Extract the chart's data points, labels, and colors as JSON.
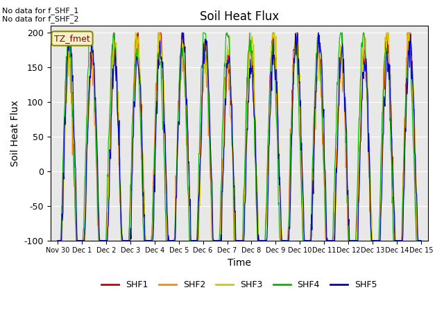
{
  "title": "Soil Heat Flux",
  "ylabel": "Soil Heat Flux",
  "xlabel": "Time",
  "annotation_text": "No data for f_SHF_1\nNo data for f_SHF_2",
  "legend_label": "TZ_fmet",
  "ylim": [
    -100,
    210
  ],
  "series_colors": {
    "SHF1": "#cc0000",
    "SHF2": "#ff8800",
    "SHF3": "#cccc00",
    "SHF4": "#00bb00",
    "SHF5": "#0000cc"
  },
  "x_tick_labels": [
    "Nov 30",
    "Dec 1",
    "Dec 2",
    "Dec 3",
    "Dec 4",
    "Dec 5",
    "Dec 6",
    "Dec 7",
    "Dec 8",
    "Dec 9",
    "Dec 10",
    "Dec 11",
    "Dec 12",
    "Dec 13",
    "Dec 14",
    "Dec 15"
  ],
  "n_days": 16,
  "pts_per_day": 48
}
